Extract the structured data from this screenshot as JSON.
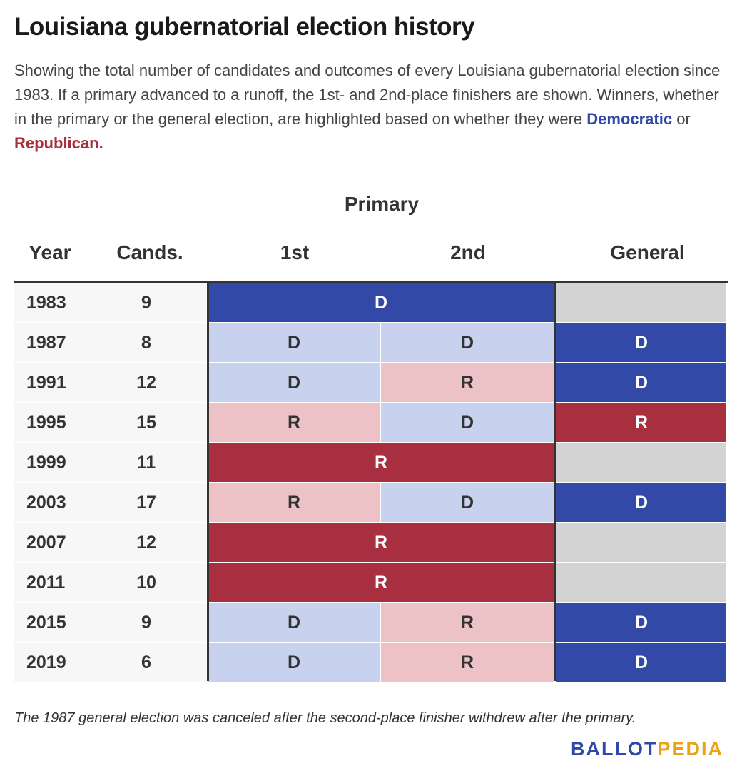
{
  "title": "Louisiana gubernatorial election history",
  "description": {
    "text": "Showing the total number of candidates and outcomes of every Louisiana gubernatorial election since 1983. If a primary advanced to a runoff, the 1st- and 2nd-place finishers are shown. Winners, whether in the primary or the general election, are highlighted based on whether they were ",
    "democratic": "Democratic",
    "or": " or ",
    "republican": "Republican."
  },
  "headers": {
    "primary": "Primary",
    "year": "Year",
    "cands": "Cands.",
    "first": "1st",
    "second": "2nd",
    "general": "General"
  },
  "colors": {
    "dem_win": "#3349a8",
    "rep_win": "#a72f3f",
    "dem_light": "#c8d1ee",
    "rep_light": "#ecc2c7",
    "none": "#d3d3d3",
    "dem_text": "#3148a8",
    "rep_text": "#a72f3c"
  },
  "chart_data": {
    "type": "table",
    "columns": [
      "Year",
      "Cands.",
      "1st",
      "2nd",
      "General"
    ],
    "rows": [
      {
        "year": "1983",
        "cands": "9",
        "primary_winner": "D",
        "first": null,
        "second": null,
        "general": null
      },
      {
        "year": "1987",
        "cands": "8",
        "primary_winner": null,
        "first": "D",
        "second": "D",
        "general": "D"
      },
      {
        "year": "1991",
        "cands": "12",
        "primary_winner": null,
        "first": "D",
        "second": "R",
        "general": "D"
      },
      {
        "year": "1995",
        "cands": "15",
        "primary_winner": null,
        "first": "R",
        "second": "D",
        "general": "R"
      },
      {
        "year": "1999",
        "cands": "11",
        "primary_winner": "R",
        "first": null,
        "second": null,
        "general": null
      },
      {
        "year": "2003",
        "cands": "17",
        "primary_winner": null,
        "first": "R",
        "second": "D",
        "general": "D"
      },
      {
        "year": "2007",
        "cands": "12",
        "primary_winner": "R",
        "first": null,
        "second": null,
        "general": null
      },
      {
        "year": "2011",
        "cands": "10",
        "primary_winner": "R",
        "first": null,
        "second": null,
        "general": null
      },
      {
        "year": "2015",
        "cands": "9",
        "primary_winner": null,
        "first": "D",
        "second": "R",
        "general": "D"
      },
      {
        "year": "2019",
        "cands": "6",
        "primary_winner": null,
        "first": "D",
        "second": "R",
        "general": "D"
      }
    ]
  },
  "footnote": "The 1987 general election was canceled after the second-place finisher withdrew after the primary.",
  "logo": {
    "part1": "BALLOT",
    "part2": "PEDIA"
  }
}
